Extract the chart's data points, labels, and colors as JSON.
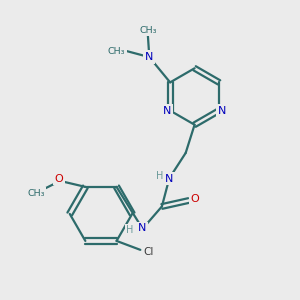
{
  "background_color": "#ebebeb",
  "bond_color": "#2d6b6b",
  "N_color": "#0000bb",
  "O_color": "#cc0000",
  "Cl_color": "#3a3a3a",
  "H_color": "#6a9a9a",
  "figsize": [
    3.0,
    3.0
  ],
  "dpi": 100,
  "xlim": [
    0,
    10
  ],
  "ylim": [
    0,
    10
  ]
}
